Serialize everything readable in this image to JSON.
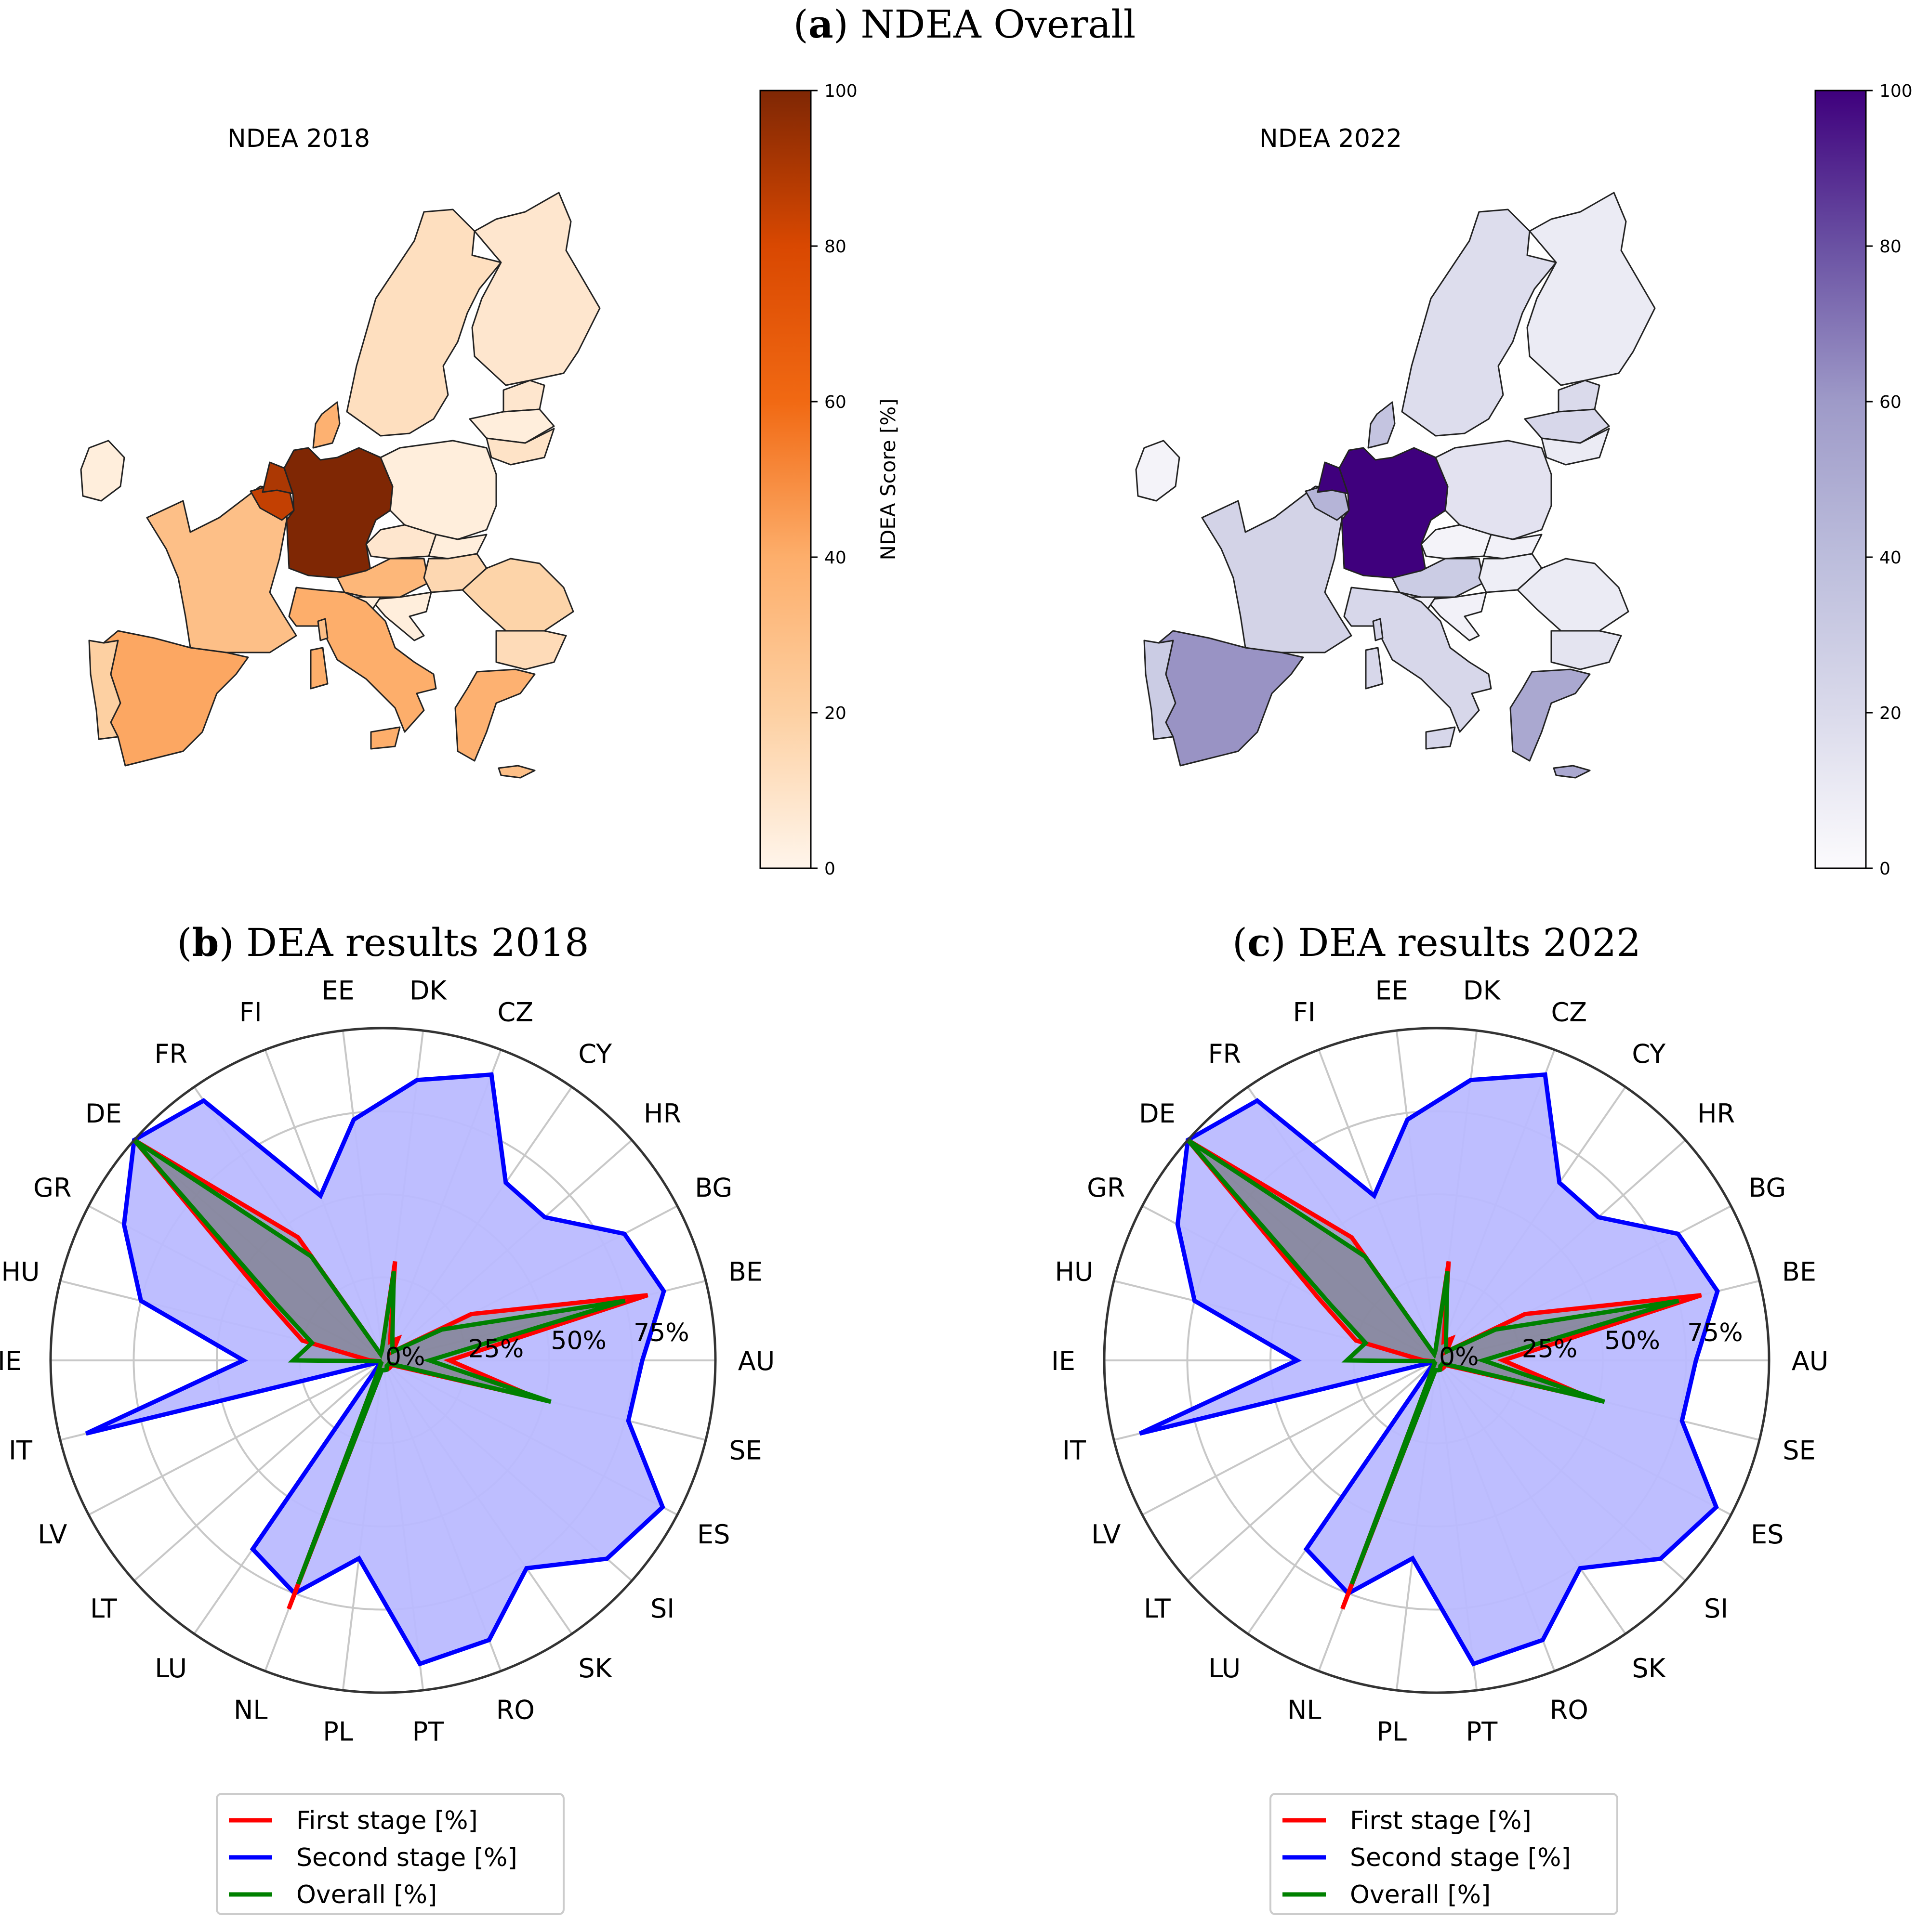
{
  "figure": {
    "panel_a": {
      "letter": "a",
      "text": ") NDEA Overall"
    },
    "panel_b": {
      "letter": "b",
      "text": ") DEA results 2018"
    },
    "panel_c": {
      "letter": "c",
      "text": ") DEA results 2022"
    }
  },
  "colors": {
    "oranges": [
      "#fff5eb",
      "#fdd0a2",
      "#fdae6b",
      "#f16913",
      "#d94801",
      "#7f2704"
    ],
    "purples": [
      "#fcfbfd",
      "#dadaeb",
      "#bcbddc",
      "#9e9ac8",
      "#6a51a3",
      "#3f007d"
    ],
    "first_stage": "#ff0000",
    "second_stage": "#0000ff",
    "second_stage_fill": "#bbbbff",
    "overall": "#008000"
  },
  "chart_data": [
    {
      "type": "choropleth",
      "title": "NDEA 2018",
      "colorbar": {
        "label": "NDEA Score [%]",
        "ticks": [
          0,
          20,
          40,
          60,
          80,
          100
        ],
        "range": [
          0,
          100
        ],
        "colormap": "Oranges"
      },
      "values": {
        "DE": 100,
        "NL": 90,
        "BE": 85,
        "DK": 38,
        "ES": 42,
        "IT": 40,
        "GR": 38,
        "AT": 35,
        "FR": 30,
        "PT": 20,
        "RO": 18,
        "HU": 16,
        "BG": 14,
        "SE": 12,
        "FI": 8,
        "CZ": 8,
        "IE": 4,
        "PL": 4,
        "LT": 10,
        "LV": 4,
        "EE": 8,
        "SK": 4,
        "SI": 4,
        "HR": 4,
        "CY": 30
      }
    },
    {
      "type": "choropleth",
      "title": "NDEA 2022",
      "colorbar": {
        "label": "NDEA Score [%]",
        "ticks": [
          0,
          20,
          40,
          60,
          80,
          100
        ],
        "range": [
          0,
          100
        ],
        "colormap": "Purples"
      },
      "values": {
        "DE": 100,
        "NL": 100,
        "BE": 45,
        "DK": 35,
        "ES": 62,
        "IT": 22,
        "GR": 52,
        "AT": 30,
        "FR": 25,
        "PT": 30,
        "RO": 10,
        "HU": 8,
        "BG": 14,
        "SE": 18,
        "FI": 10,
        "CZ": 5,
        "IE": 5,
        "PL": 15,
        "LT": 10,
        "LV": 22,
        "EE": 20,
        "SK": 6,
        "SI": 6,
        "HR": 6,
        "CY": 52
      }
    },
    {
      "type": "radar",
      "title": "DEA results 2018",
      "categories": [
        "AU",
        "BE",
        "BG",
        "HR",
        "CY",
        "CZ",
        "DK",
        "EE",
        "FI",
        "FR",
        "DE",
        "GR",
        "HU",
        "IE",
        "IT",
        "LV",
        "LT",
        "LU",
        "NL",
        "PL",
        "PT",
        "RO",
        "SK",
        "SI",
        "ES",
        "SE"
      ],
      "rticks": [
        "0%",
        "25%",
        "50%",
        "75%"
      ],
      "rlim": [
        0,
        100
      ],
      "legend_position": "bottom",
      "series": [
        {
          "name": "First stage [%]",
          "values": [
            20,
            82,
            30,
            4,
            8,
            6,
            30,
            3,
            2,
            45,
            100,
            40,
            25,
            4,
            1,
            1,
            1,
            1,
            80,
            3,
            3,
            3,
            3,
            3,
            3,
            48
          ]
        },
        {
          "name": "Second stage [%]",
          "values": [
            78,
            87,
            82,
            65,
            65,
            92,
            85,
            73,
            53,
            95,
            100,
            88,
            75,
            42,
            92,
            1,
            1,
            69,
            75,
            60,
            92,
            90,
            76,
            90,
            95,
            76
          ]
        },
        {
          "name": "Overall [%]",
          "values": [
            14,
            75,
            20,
            4,
            5,
            8,
            27,
            3,
            2,
            38,
            100,
            36,
            22,
            27,
            1,
            1,
            1,
            1,
            72,
            3,
            3,
            3,
            2,
            2,
            2,
            52
          ]
        }
      ]
    },
    {
      "type": "radar",
      "title": "DEA results 2022",
      "categories": [
        "AU",
        "BE",
        "BG",
        "HR",
        "CY",
        "CZ",
        "DK",
        "EE",
        "FI",
        "FR",
        "DE",
        "GR",
        "HU",
        "IE",
        "IT",
        "LV",
        "LT",
        "LU",
        "NL",
        "PL",
        "PT",
        "RO",
        "SK",
        "SI",
        "ES",
        "SE"
      ],
      "rticks": [
        "0%",
        "25%",
        "50%",
        "75%"
      ],
      "rlim": [
        0,
        100
      ],
      "legend_position": "bottom",
      "series": [
        {
          "name": "First stage [%]",
          "values": [
            20,
            82,
            30,
            4,
            8,
            6,
            30,
            3,
            2,
            45,
            100,
            40,
            25,
            4,
            1,
            1,
            1,
            1,
            80,
            3,
            3,
            3,
            3,
            3,
            3,
            48
          ]
        },
        {
          "name": "Second stage [%]",
          "values": [
            78,
            87,
            82,
            65,
            65,
            92,
            85,
            73,
            53,
            95,
            100,
            88,
            75,
            42,
            92,
            1,
            1,
            69,
            75,
            60,
            92,
            90,
            76,
            90,
            95,
            76
          ]
        },
        {
          "name": "Overall [%]",
          "values": [
            14,
            75,
            20,
            4,
            5,
            8,
            27,
            3,
            2,
            38,
            100,
            36,
            22,
            27,
            1,
            1,
            1,
            1,
            72,
            3,
            3,
            3,
            2,
            2,
            2,
            52
          ]
        }
      ]
    }
  ]
}
